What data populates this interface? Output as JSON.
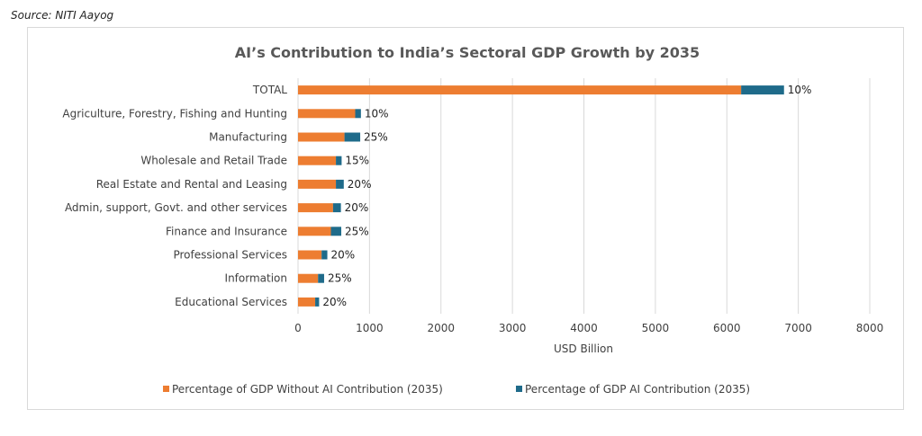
{
  "source": "Source: NITI Aayog",
  "colors": {
    "without_ai": "#ed7d31",
    "with_ai": "#1f6b8a",
    "grid": "#d9d9d9",
    "text": "#404040",
    "title": "#595959"
  },
  "chart_data": {
    "type": "bar",
    "orientation": "horizontal",
    "stacked": true,
    "title": "AI’s Contribution to India’s Sectoral GDP Growth by 2035",
    "xlabel": "USD Billion",
    "ylabel": "",
    "xlim": [
      0,
      8000
    ],
    "xticks": [
      0,
      1000,
      2000,
      3000,
      4000,
      5000,
      6000,
      7000,
      8000
    ],
    "grid": true,
    "legend_position": "bottom",
    "categories": [
      "TOTAL",
      "Agriculture, Forestry, Fishing and Hunting",
      "Manufacturing",
      "Wholesale and Retail Trade",
      "Real Estate and Rental and Leasing",
      "Admin, support, Govt. and other services",
      "Finance and Insurance",
      "Professional Services",
      "Information",
      "Educational Services"
    ],
    "series": [
      {
        "name": "Percentage of GDP Without AI Contribution (2035)",
        "values": [
          6200,
          800,
          650,
          530,
          530,
          490,
          460,
          330,
          280,
          240
        ]
      },
      {
        "name": "Percentage of GDP AI Contribution (2035)",
        "values": [
          600,
          80,
          220,
          80,
          110,
          110,
          145,
          80,
          85,
          55
        ]
      }
    ],
    "data_labels": [
      "10%",
      "10%",
      "25%",
      "15%",
      "20%",
      "20%",
      "25%",
      "20%",
      "25%",
      "20%"
    ]
  }
}
